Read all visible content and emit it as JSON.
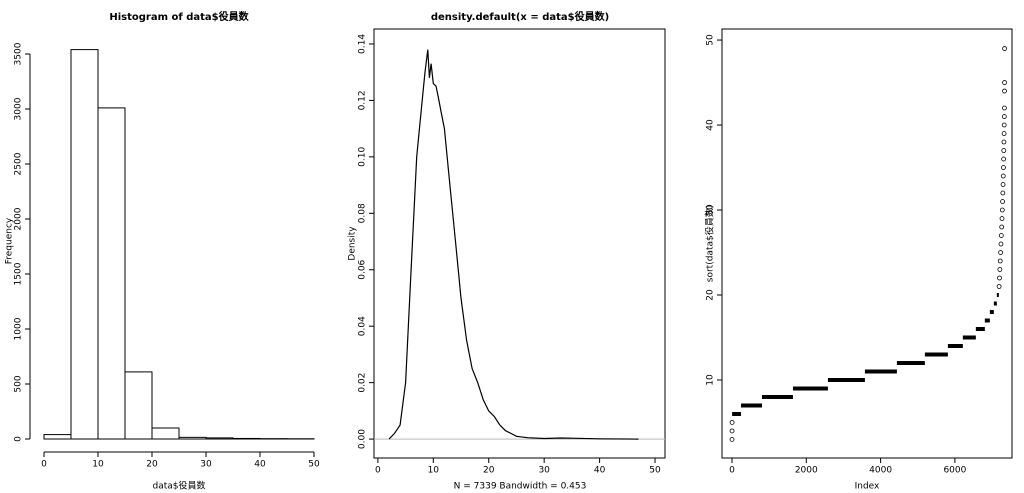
{
  "chart_data": [
    {
      "type": "histogram",
      "title": "Histogram of data$役員数",
      "xlabel": "data$役員数",
      "ylabel": "Frequency",
      "bins": [
        0,
        5,
        10,
        15,
        20,
        25,
        30,
        35,
        40,
        45,
        50
      ],
      "values": [
        40,
        3540,
        3010,
        610,
        100,
        15,
        10,
        5,
        3,
        2
      ],
      "color": "#ffffff",
      "xlim": [
        0,
        50
      ],
      "xticks": [
        0,
        10,
        20,
        30,
        40,
        50
      ],
      "ylim": [
        0,
        3600
      ],
      "yticks": [
        0,
        500,
        1000,
        1500,
        2000,
        2500,
        3000,
        3500
      ]
    },
    {
      "type": "line",
      "title": "density.default(x = data$役員数)",
      "xlabel": "N = 7339   Bandwidth = 0.453",
      "ylabel": "Density",
      "x": [
        2,
        3,
        4,
        5,
        6,
        7,
        8,
        8.5,
        9,
        9.3,
        9.6,
        10,
        10.5,
        11,
        11.5,
        12,
        13,
        14,
        15,
        16,
        17,
        18,
        19,
        20,
        21,
        22,
        23,
        24,
        25,
        27,
        30,
        33,
        35,
        40,
        47
      ],
      "values": [
        0,
        0.002,
        0.005,
        0.02,
        0.06,
        0.1,
        0.12,
        0.13,
        0.138,
        0.128,
        0.133,
        0.126,
        0.125,
        0.12,
        0.115,
        0.11,
        0.09,
        0.07,
        0.05,
        0.035,
        0.025,
        0.02,
        0.014,
        0.01,
        0.008,
        0.005,
        0.003,
        0.002,
        0.001,
        0.0005,
        0.0002,
        0.0004,
        0.0003,
        0.0001,
        0
      ],
      "color": "#000000",
      "xlim": [
        -0.7,
        51.8
      ],
      "xticks": [
        0,
        10,
        20,
        30,
        40,
        50
      ],
      "ylim": [
        -0.0067,
        0.1453
      ],
      "yticks": [
        {
          "value": 0,
          "label": "0.00"
        },
        0.02,
        0.04,
        0.06,
        0.08,
        {
          "value": 0.1,
          "label": "0.10"
        },
        0.12,
        0.14
      ]
    },
    {
      "type": "scatter",
      "xlabel": "Index",
      "ylabel": "sort(data$役員数)",
      "x": [
        1,
        2,
        3,
        7190,
        7200,
        7210,
        7220,
        7230,
        7240,
        7250,
        7260,
        7268,
        7276,
        7283,
        7290,
        7296,
        7302,
        7307,
        7312,
        7316,
        7320,
        7324,
        7327,
        7330,
        7333,
        7335,
        7337,
        7338
      ],
      "values": [
        3,
        4,
        5,
        21,
        22,
        23,
        24,
        25,
        26,
        27,
        28,
        29,
        30,
        31,
        32,
        33,
        34,
        35,
        36,
        37,
        38,
        39,
        40,
        41,
        42,
        44,
        45,
        49
      ],
      "runs": {
        "values": [
          6,
          7,
          8,
          9,
          10,
          11,
          12,
          13,
          14,
          15,
          16,
          17,
          18,
          19,
          20
        ],
        "x_start": [
          4,
          242,
          807,
          1641,
          2582,
          3578,
          4439,
          5192,
          5811,
          6214,
          6564,
          6806,
          6941,
          7048,
          7129
        ],
        "x_end": [
          242,
          807,
          1641,
          2582,
          3578,
          4439,
          5192,
          5811,
          6214,
          6564,
          6806,
          6941,
          7048,
          7129,
          7183
        ]
      },
      "color": "#000000",
      "xlim": [
        -269,
        7537
      ],
      "xticks": [
        0,
        2000,
        4000,
        6000
      ],
      "ylim": [
        0.82,
        51.3
      ],
      "yticks": [
        10,
        20,
        30,
        40,
        50
      ]
    }
  ]
}
